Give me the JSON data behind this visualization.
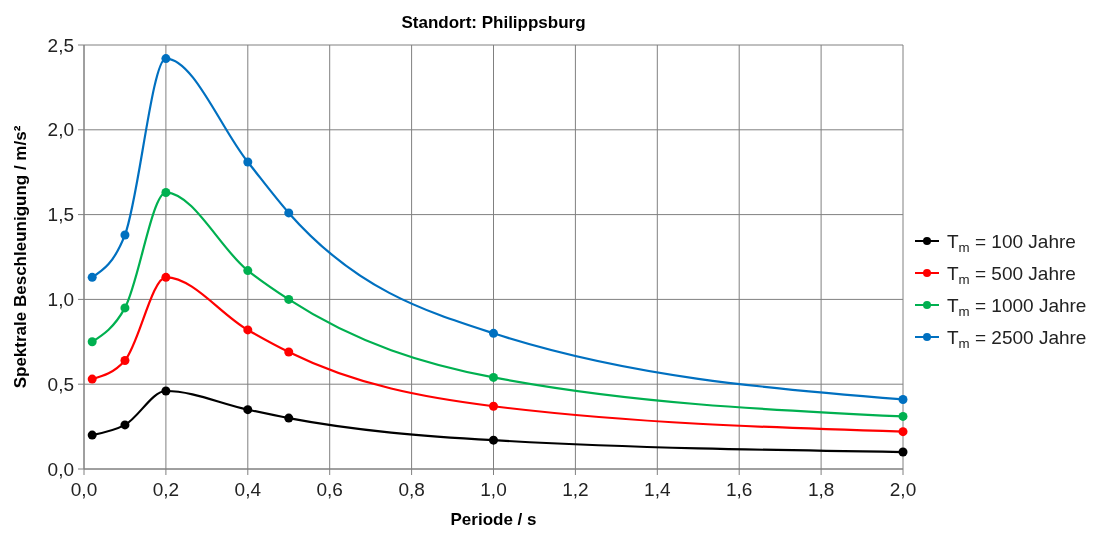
{
  "chart_data": {
    "type": "line",
    "title": "Standort: Philippsburg",
    "xlabel": "Periode / s",
    "ylabel": "Spektrale Beschleunigung / m/s²",
    "x": [
      0.02,
      0.1,
      0.2,
      0.4,
      0.5,
      1.0,
      2.0
    ],
    "series": [
      {
        "name": "T$_{m}$ = 100 Jahre",
        "color": "#000000",
        "values": [
          0.2,
          0.26,
          0.46,
          0.35,
          0.3,
          0.17,
          0.1
        ]
      },
      {
        "name": "T$_{m}$ = 500 Jahre",
        "color": "#ff0000",
        "values": [
          0.53,
          0.64,
          1.13,
          0.82,
          0.69,
          0.37,
          0.22
        ]
      },
      {
        "name": "T$_{m}$ = 1000 Jahre",
        "color": "#00b050",
        "values": [
          0.75,
          0.95,
          1.63,
          1.17,
          1.0,
          0.54,
          0.31
        ]
      },
      {
        "name": "T$_{m}$ = 2500 Jahre",
        "color": "#0070c0",
        "values": [
          1.13,
          1.38,
          2.42,
          1.81,
          1.51,
          0.8,
          0.41
        ]
      }
    ],
    "xlim": [
      0,
      2.0
    ],
    "ylim": [
      0,
      2.5
    ],
    "xticks": [
      {
        "value": 0,
        "label": "0,0"
      },
      {
        "value": 0.2,
        "label": "0,2"
      },
      {
        "value": 0.4,
        "label": "0,4"
      },
      {
        "value": 0.6,
        "label": "0,6"
      },
      {
        "value": 0.8,
        "label": "0,8"
      },
      {
        "value": 1.0,
        "label": "1,0"
      },
      {
        "value": 1.2,
        "label": "1,2"
      },
      {
        "value": 1.4,
        "label": "1,4"
      },
      {
        "value": 1.6,
        "label": "1,6"
      },
      {
        "value": 1.8,
        "label": "1,8"
      },
      {
        "value": 2.0,
        "label": "2,0"
      }
    ],
    "yticks": [
      {
        "value": 0,
        "label": "0,0"
      },
      {
        "value": 0.5,
        "label": "0,5"
      },
      {
        "value": 1.0,
        "label": "1,0"
      },
      {
        "value": 1.5,
        "label": "1,5"
      },
      {
        "value": 2.0,
        "label": "2,0"
      },
      {
        "value": 2.5,
        "label": "2,5"
      }
    ],
    "grid": true,
    "legend": "right",
    "marker": "circle",
    "line_style": "solid"
  }
}
